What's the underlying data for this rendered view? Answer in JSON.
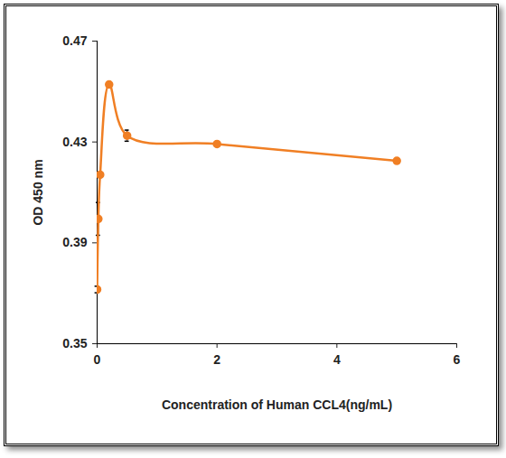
{
  "chart_data": {
    "type": "line",
    "xlabel": "Concentration of Human CCL4(ng/mL)",
    "ylabel": "OD 450 nm",
    "x": [
      0,
      0.02,
      0.05,
      0.2,
      0.5,
      2,
      5
    ],
    "values": [
      0.3715,
      0.3995,
      0.417,
      0.4528,
      0.4325,
      0.4292,
      0.4225
    ],
    "errors": [
      0.0013,
      0.0065,
      0.001,
      0.0005,
      0.0022,
      0.0005,
      0.0005
    ],
    "color": "#f07f24",
    "marker": "circle",
    "xlim": [
      0,
      6
    ],
    "xticks": [
      0,
      2,
      4,
      6
    ],
    "ylim": [
      0.35,
      0.47
    ],
    "yticks": [
      0.35,
      0.39,
      0.43,
      0.47
    ],
    "grid": false
  }
}
